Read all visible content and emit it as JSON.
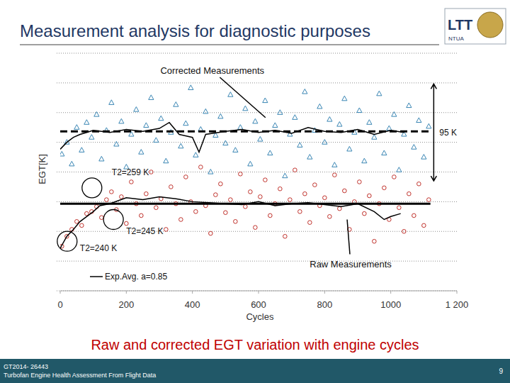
{
  "header": {
    "title": "Measurement analysis for diagnostic purposes",
    "logo": {
      "text": "LTT",
      "subtext": "NTUA"
    }
  },
  "chart_data": {
    "type": "scatter",
    "x_label": "Cycles",
    "y_label": "EGT[K]",
    "xlim": [
      0,
      1200
    ],
    "xticks": [
      0,
      200,
      400,
      600,
      800,
      1000,
      {
        "value": 1200,
        "label": "1 200"
      }
    ],
    "ylim": [
      0,
      240
    ],
    "yticks": [
      0,
      30,
      60,
      90,
      120,
      150,
      180,
      210,
      240
    ],
    "grid": true,
    "tick_labels": "x",
    "legend": "lower left",
    "series": [
      {
        "name": "Corrected Measurements",
        "type": "scatter",
        "color": "#3a86b4",
        "marker": "triangle",
        "callout": {
          "x": 621,
          "y": 175
        },
        "x": [
          5,
          20,
          35,
          50,
          65,
          80,
          95,
          110,
          125,
          140,
          155,
          170,
          185,
          200,
          215,
          230,
          245,
          260,
          275,
          290,
          305,
          320,
          335,
          350,
          365,
          380,
          395,
          410,
          425,
          440,
          455,
          470,
          485,
          500,
          515,
          530,
          545,
          560,
          575,
          590,
          605,
          620,
          635,
          650,
          665,
          680,
          695,
          710,
          725,
          740,
          755,
          770,
          785,
          800,
          815,
          830,
          845,
          860,
          875,
          890,
          905,
          920,
          935,
          950,
          965,
          980,
          995,
          1010,
          1025,
          1040,
          1055,
          1070,
          1085,
          1100,
          1115
        ],
        "values": [
          138,
          150,
          128,
          165,
          142,
          170,
          155,
          178,
          133,
          162,
          190,
          148,
          171,
          125,
          158,
          183,
          140,
          167,
          195,
          152,
          174,
          131,
          160,
          188,
          146,
          169,
          205,
          137,
          163,
          181,
          120,
          157,
          176,
          149,
          198,
          142,
          165,
          184,
          128,
          171,
          153,
          192,
          139,
          167,
          180,
          116,
          158,
          175,
          147,
          201,
          135,
          162,
          186,
          150,
          173,
          127,
          168,
          194,
          143,
          160,
          182,
          131,
          170,
          155,
          199,
          139,
          164,
          178,
          122,
          158,
          187,
          145,
          172,
          135,
          166
        ]
      },
      {
        "name": "Raw Measurements",
        "type": "scatter",
        "color": "#c0302a",
        "marker": "circle",
        "callout": {
          "x": 868,
          "y": 72
        },
        "x": [
          5,
          20,
          35,
          50,
          65,
          80,
          95,
          110,
          125,
          140,
          155,
          170,
          185,
          200,
          215,
          230,
          245,
          260,
          275,
          290,
          305,
          320,
          335,
          350,
          365,
          380,
          395,
          410,
          425,
          440,
          455,
          470,
          485,
          500,
          515,
          530,
          545,
          560,
          575,
          590,
          605,
          620,
          635,
          650,
          665,
          680,
          695,
          710,
          725,
          740,
          755,
          770,
          785,
          800,
          815,
          830,
          845,
          860,
          875,
          890,
          905,
          920,
          935,
          950,
          965,
          980,
          995,
          1010,
          1025,
          1040,
          1055,
          1070,
          1085,
          1100,
          1115
        ],
        "values": [
          45,
          55,
          62,
          70,
          66,
          78,
          80,
          85,
          74,
          92,
          100,
          82,
          95,
          68,
          110,
          88,
          76,
          98,
          120,
          84,
          93,
          62,
          105,
          88,
          72,
          115,
          90,
          80,
          125,
          86,
          58,
          97,
          108,
          79,
          92,
          70,
          118,
          85,
          100,
          64,
          95,
          112,
          76,
          88,
          103,
          55,
          92,
          122,
          80,
          98,
          69,
          107,
          86,
          94,
          75,
          117,
          83,
          101,
          62,
          90,
          110,
          78,
          96,
          50,
          88,
          104,
          72,
          115,
          84,
          60,
          98,
          76,
          108,
          66,
          92
        ]
      },
      {
        "name": "Exp.Avg. a=0.85",
        "type": "line",
        "color": "#000000",
        "line_style": "solid",
        "x": [
          0,
          20,
          40,
          60,
          80,
          100,
          150,
          200,
          250,
          300,
          330,
          360,
          400,
          420,
          440,
          500,
          550,
          600,
          650,
          700,
          750,
          800,
          850,
          900,
          950,
          1000,
          1040,
          null,
          0,
          20,
          40,
          60,
          80,
          100,
          120,
          150,
          200,
          250,
          300,
          350,
          400,
          450,
          500,
          550,
          600,
          650,
          700,
          750,
          800,
          850,
          900,
          950,
          980,
          1000,
          1030
        ],
        "values": [
          143,
          150,
          155,
          158,
          160,
          162,
          160,
          163,
          161,
          164,
          170,
          158,
          155,
          140,
          158,
          161,
          163,
          160,
          162,
          159,
          165,
          161,
          160,
          163,
          158,
          162,
          160,
          null,
          43,
          55,
          62,
          70,
          75,
          80,
          86,
          88,
          94,
          92,
          95,
          93,
          90,
          89,
          88,
          87,
          90,
          86,
          88,
          89,
          87,
          85,
          88,
          80,
          72,
          75,
          78
        ]
      }
    ],
    "reference_lines": [
      {
        "value": 161,
        "x": [
          0,
          1120
        ],
        "line_style": "dashed",
        "color": "#000000"
      },
      {
        "value": 88,
        "x": [
          0,
          1120
        ],
        "line_style": "solid",
        "color": "#000000"
      }
    ],
    "annotations": [
      {
        "text": "95 K",
        "x": 1130,
        "y": [
          111,
          209
        ]
      },
      {
        "text": "T2=259 K",
        "x": 96,
        "y": 104
      },
      {
        "text": "T2=245 K",
        "x": 161,
        "y": 72
      },
      {
        "text": "T2=240 K",
        "x": 21,
        "y": 50
      }
    ]
  },
  "caption": "Raw and corrected EGT variation with engine cycles",
  "footer": {
    "lines": [
      "GT2014- 26443",
      "Turbofan Engine Health Assessment From Flight Data"
    ],
    "page": 9
  }
}
